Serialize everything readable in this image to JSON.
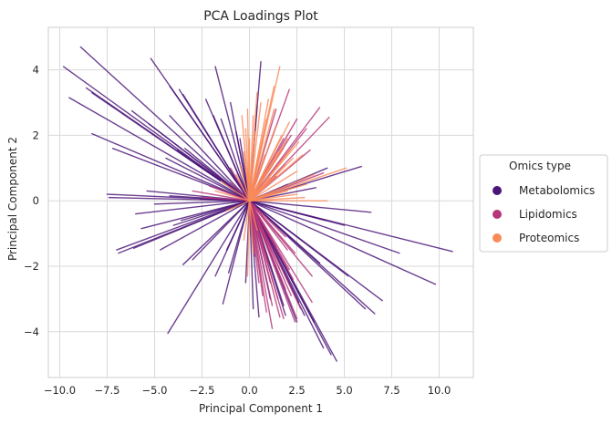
{
  "chart_data": {
    "type": "scatter",
    "title": "PCA Loadings Plot",
    "xlabel": "Principal Component 1",
    "ylabel": "Principal Component 2",
    "xlim": [
      -10.6,
      11.8
    ],
    "ylim": [
      -5.4,
      5.3
    ],
    "xticks": [
      -10.0,
      -7.5,
      -5.0,
      -2.5,
      0.0,
      2.5,
      5.0,
      7.5,
      10.0
    ],
    "xtick_labels": [
      "−10.0",
      "−7.5",
      "−5.0",
      "−2.5",
      "0.0",
      "2.5",
      "5.0",
      "7.5",
      "10.0"
    ],
    "yticks": [
      -4,
      -2,
      0,
      2,
      4
    ],
    "ytick_labels": [
      "−4",
      "−2",
      "0",
      "2",
      "4"
    ],
    "grid": true,
    "legend": {
      "title": "Omics type",
      "position": "center-right-outside",
      "entries": [
        "Metabolomics",
        "Lipidomics",
        "Proteomics"
      ]
    },
    "series": [
      {
        "name": "Metabolomics",
        "color": "#4a1478",
        "marker": "line-from-origin",
        "points": [
          [
            -8.9,
            4.7
          ],
          [
            -9.8,
            4.1
          ],
          [
            -9.5,
            3.15
          ],
          [
            -8.6,
            3.45
          ],
          [
            -8.3,
            3.3
          ],
          [
            -8.3,
            2.05
          ],
          [
            -7.2,
            1.6
          ],
          [
            -5.2,
            4.35
          ],
          [
            -4.2,
            3.5
          ],
          [
            -3.7,
            3.4
          ],
          [
            -3.5,
            3.25
          ],
          [
            -2.3,
            3.1
          ],
          [
            -6.2,
            2.75
          ],
          [
            -5.3,
            2.35
          ],
          [
            -4.2,
            2.6
          ],
          [
            -3.8,
            1.55
          ],
          [
            -4.4,
            1.3
          ],
          [
            -3.4,
            1.6
          ],
          [
            -2.7,
            1.1
          ],
          [
            -1.9,
            2.6
          ],
          [
            -1.8,
            4.1
          ],
          [
            -1.5,
            2.5
          ],
          [
            -1.0,
            3.0
          ],
          [
            -0.7,
            2.1
          ],
          [
            -0.5,
            1.9
          ],
          [
            0.6,
            4.25
          ],
          [
            0.4,
            2.9
          ],
          [
            -7.5,
            0.2
          ],
          [
            -7.4,
            0.1
          ],
          [
            -5.4,
            0.3
          ],
          [
            -4.2,
            0.15
          ],
          [
            -2.6,
            0.05
          ],
          [
            -6.0,
            -0.4
          ],
          [
            -5.0,
            -0.1
          ],
          [
            -5.7,
            -0.85
          ],
          [
            -3.6,
            -0.6
          ],
          [
            -7.0,
            -1.5
          ],
          [
            -6.9,
            -1.6
          ],
          [
            -6.1,
            -1.45
          ],
          [
            -4.0,
            -0.75
          ],
          [
            -4.7,
            -1.5
          ],
          [
            -3.5,
            -1.95
          ],
          [
            -3.0,
            -1.8
          ],
          [
            -1.8,
            -2.3
          ],
          [
            -1.1,
            -2.2
          ],
          [
            -1.2,
            -1.5
          ],
          [
            -4.3,
            -4.05
          ],
          [
            -1.4,
            -3.15
          ],
          [
            5.9,
            1.05
          ],
          [
            4.1,
            1.0
          ],
          [
            3.5,
            0.4
          ],
          [
            2.0,
            0.5
          ],
          [
            10.7,
            -1.55
          ],
          [
            9.8,
            -2.55
          ],
          [
            7.9,
            -1.6
          ],
          [
            6.4,
            -0.35
          ],
          [
            5.0,
            -0.75
          ],
          [
            4.0,
            -0.6
          ],
          [
            7.0,
            -3.05
          ],
          [
            6.6,
            -3.45
          ],
          [
            6.1,
            -3.3
          ],
          [
            5.2,
            -2.3
          ],
          [
            3.7,
            -1.9
          ],
          [
            4.6,
            -4.9
          ],
          [
            4.3,
            -4.7
          ],
          [
            3.9,
            -4.5
          ],
          [
            3.4,
            -3.7
          ],
          [
            2.6,
            -3.1
          ],
          [
            2.0,
            -2.1
          ],
          [
            2.9,
            -3.5
          ],
          [
            0.5,
            -3.55
          ],
          [
            1.1,
            -3.0
          ],
          [
            1.8,
            -3.2
          ],
          [
            1.9,
            -3.5
          ],
          [
            2.5,
            -3.7
          ],
          [
            0.2,
            -3.3
          ],
          [
            -0.2,
            -2.5
          ]
        ]
      },
      {
        "name": "Lipidomics",
        "color": "#b5367a",
        "marker": "line-from-origin",
        "points": [
          [
            3.7,
            2.85
          ],
          [
            4.2,
            2.55
          ],
          [
            3.0,
            2.2
          ],
          [
            2.2,
            2.0
          ],
          [
            1.8,
            1.9
          ],
          [
            2.5,
            2.5
          ],
          [
            3.2,
            1.55
          ],
          [
            2.1,
            3.4
          ],
          [
            1.4,
            2.8
          ],
          [
            3.9,
            0.85
          ],
          [
            1.4,
            0.75
          ],
          [
            -1.0,
            0.55
          ],
          [
            -2.1,
            0.45
          ],
          [
            -3.0,
            0.3
          ],
          [
            -1.0,
            1.0
          ],
          [
            -2.5,
            0.1
          ],
          [
            1.2,
            -3.9
          ],
          [
            2.4,
            -3.7
          ],
          [
            3.3,
            -3.1
          ],
          [
            1.6,
            -3.55
          ],
          [
            0.9,
            -3.4
          ],
          [
            0.5,
            -2.5
          ],
          [
            1.9,
            -2.7
          ],
          [
            1.0,
            -1.9
          ],
          [
            2.3,
            -2.4
          ],
          [
            1.4,
            -1.4
          ],
          [
            0.7,
            -2.9
          ],
          [
            2.7,
            -3.3
          ],
          [
            1.8,
            -3.6
          ],
          [
            2.5,
            -3.6
          ],
          [
            1.2,
            -3.2
          ],
          [
            1.6,
            -2.1
          ],
          [
            2.1,
            -2.1
          ],
          [
            1.5,
            -3.0
          ],
          [
            2.2,
            -2.9
          ],
          [
            0.8,
            -1.2
          ],
          [
            1.9,
            -1.1
          ],
          [
            0.3,
            -1.7
          ],
          [
            2.4,
            -1.6
          ],
          [
            3.3,
            -2.3
          ],
          [
            1.1,
            -2.5
          ],
          [
            2.0,
            -1.5
          ]
        ]
      },
      {
        "name": "Proteomics",
        "color": "#f98a5a",
        "marker": "line-from-origin",
        "points": [
          [
            1.6,
            4.1
          ],
          [
            1.3,
            3.5
          ],
          [
            0.4,
            3.3
          ],
          [
            -0.1,
            2.8
          ],
          [
            0.6,
            3.0
          ],
          [
            0.9,
            2.5
          ],
          [
            -0.4,
            2.6
          ],
          [
            -0.2,
            2.2
          ],
          [
            0.2,
            2.6
          ],
          [
            1.0,
            3.1
          ],
          [
            1.4,
            2.3
          ],
          [
            1.7,
            2.0
          ],
          [
            2.0,
            1.9
          ],
          [
            2.3,
            1.3
          ],
          [
            2.6,
            1.8
          ],
          [
            2.5,
            0.9
          ],
          [
            1.9,
            1.1
          ],
          [
            0.7,
            1.8
          ],
          [
            -0.3,
            1.5
          ],
          [
            -0.5,
            1.1
          ],
          [
            -0.7,
            0.8
          ],
          [
            0.4,
            1.2
          ],
          [
            1.1,
            0.7
          ],
          [
            1.5,
            1.5
          ],
          [
            2.1,
            2.4
          ],
          [
            1.8,
            1.6
          ],
          [
            0.0,
            1.9
          ],
          [
            -0.1,
            1.0
          ],
          [
            0.3,
            2.1
          ],
          [
            0.8,
            1.4
          ],
          [
            5.1,
            1.0
          ],
          [
            3.0,
            0.5
          ],
          [
            3.4,
            0.8
          ],
          [
            4.1,
            0.0
          ],
          [
            2.9,
            0.1
          ],
          [
            2.5,
            0.2
          ],
          [
            1.2,
            0.2
          ],
          [
            2.0,
            0.3
          ],
          [
            -1.8,
            0.3
          ],
          [
            -1.5,
            0.6
          ],
          [
            -1.2,
            -0.3
          ],
          [
            -0.1,
            -2.3
          ],
          [
            0.2,
            -1.6
          ],
          [
            0.4,
            -0.9
          ],
          [
            -0.3,
            -1.2
          ],
          [
            1.3,
            2.8
          ],
          [
            0.9,
            1.0
          ],
          [
            2.2,
            1.6
          ],
          [
            1.6,
            0.9
          ],
          [
            2.8,
            1.4
          ]
        ]
      }
    ]
  }
}
